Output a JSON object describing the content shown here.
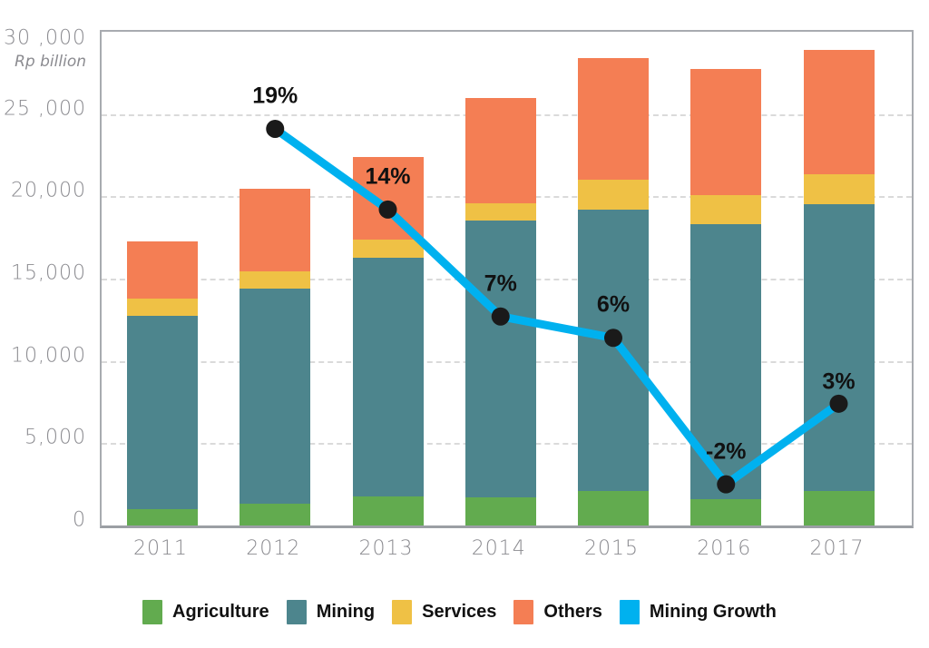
{
  "chart_data": {
    "type": "bar",
    "subtype": "stacked-bar-with-line-overlay",
    "title": "",
    "y_axis": {
      "unit_label": "Rp billion",
      "min": 0,
      "max": 30000,
      "ticks": [
        {
          "label": "30 ,000",
          "value": 30000
        },
        {
          "label": "25 ,000",
          "value": 25000
        },
        {
          "label": "20,000",
          "value": 20000
        },
        {
          "label": "15,000",
          "value": 15000
        },
        {
          "label": "10,000",
          "value": 10000
        },
        {
          "label": "5,000",
          "value": 5000
        },
        {
          "label": "0",
          "value": 0
        }
      ],
      "gridlines": "dashed horizontal at each 5,000 step"
    },
    "categories": [
      "2011",
      "2012",
      "2013",
      "2014",
      "2015",
      "2016",
      "2017"
    ],
    "series": [
      {
        "name": "Agriculture",
        "color": "#62ab4f",
        "values": [
          1000,
          1350,
          1750,
          1700,
          2100,
          1600,
          2100
        ]
      },
      {
        "name": "Mining",
        "color": "#4d858d",
        "values": [
          11750,
          13050,
          14500,
          16850,
          17100,
          16700,
          17450
        ]
      },
      {
        "name": "Services",
        "color": "#efc145",
        "values": [
          1050,
          1050,
          1100,
          1050,
          1800,
          1800,
          1800
        ]
      },
      {
        "name": "Others",
        "color": "#f47e54",
        "values": [
          3450,
          5000,
          5050,
          6400,
          7400,
          7650,
          7550
        ]
      }
    ],
    "stack_totals": [
      17250,
      20450,
      22400,
      26000,
      28400,
      27750,
      28900
    ],
    "line_series": {
      "name": "Mining Growth",
      "color": "#00b1ef",
      "point_color": "#1a1a1a",
      "categories": [
        "2012",
        "2013",
        "2014",
        "2015",
        "2016",
        "2017"
      ],
      "labels": [
        "19%",
        "14%",
        "7%",
        "6%",
        "-2%",
        "3%"
      ],
      "values_percent": [
        19,
        14,
        7,
        6,
        -2,
        3
      ],
      "plotted_axis_values": [
        24100,
        19200,
        12700,
        11400,
        2500,
        7400
      ]
    },
    "legend": [
      {
        "label": "Agriculture",
        "color": "#62ab4f"
      },
      {
        "label": "Mining",
        "color": "#4d858d"
      },
      {
        "label": "Services",
        "color": "#efc145"
      },
      {
        "label": "Others",
        "color": "#f47e54"
      },
      {
        "label": "Mining Growth",
        "color": "#00b1ef"
      }
    ],
    "legend_position": "bottom",
    "colors": {
      "axis_text": "#8b8b90",
      "gridline": "#dadada",
      "plot_border": "#a8abb0",
      "label_text": "#111111"
    }
  }
}
